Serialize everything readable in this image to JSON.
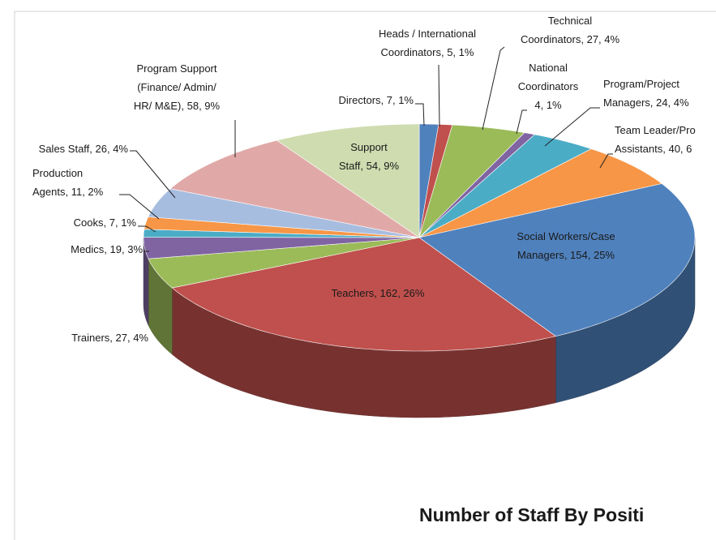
{
  "chart_data": {
    "type": "pie3d",
    "title": "Number of Staff By Positi",
    "categories": [
      "Directors",
      "Heads / International Coordinators",
      "Technical Coordinators",
      "National Coordinators",
      "Program/Project Managers",
      "Team Leader/Project Assistants",
      "Social Workers/Case Managers",
      "Teachers",
      "Trainers",
      "Medics",
      "Cooks",
      "Production Agents",
      "Sales Staff",
      "Program Support (Finance/ Admin/ HR/ M&E)",
      "Support Staff"
    ],
    "values": [
      7,
      5,
      27,
      4,
      24,
      40,
      154,
      162,
      27,
      19,
      7,
      11,
      26,
      58,
      54
    ],
    "value_labels": [
      "Directors, 7, 1%",
      "Heads / International\nCoordinators, 5, 1%",
      "Technical\nCoordinators, 27, 4%",
      "National\nCoordinators\n4, 1%",
      "Program/Project\nManagers, 24, 4%",
      "Team Leader/Pro\nAssistants, 40, 6",
      "Social Workers/Case\nManagers, 154, 25%",
      "Teachers, 162, 26%",
      "Trainers, 27, 4%",
      "Medics, 19, 3%",
      "Cooks, 7, 1%",
      "Production\nAgents, 11, 2%",
      "Sales Staff, 26, 4%",
      "Program Support\n(Finance/ Admin/\nHR/ M&E), 58, 9%",
      "Support\nStaff, 54, 9%"
    ],
    "colors": [
      "#4f81bd",
      "#c0504d",
      "#9bbb59",
      "#8064a2",
      "#4bacc6",
      "#f79646",
      "#4f81bd",
      "#c0504d",
      "#9bbb59",
      "#8064a2",
      "#4bacc6",
      "#f79646",
      "#a7bde0",
      "#e0a9a8",
      "#cfdcb0"
    ]
  }
}
